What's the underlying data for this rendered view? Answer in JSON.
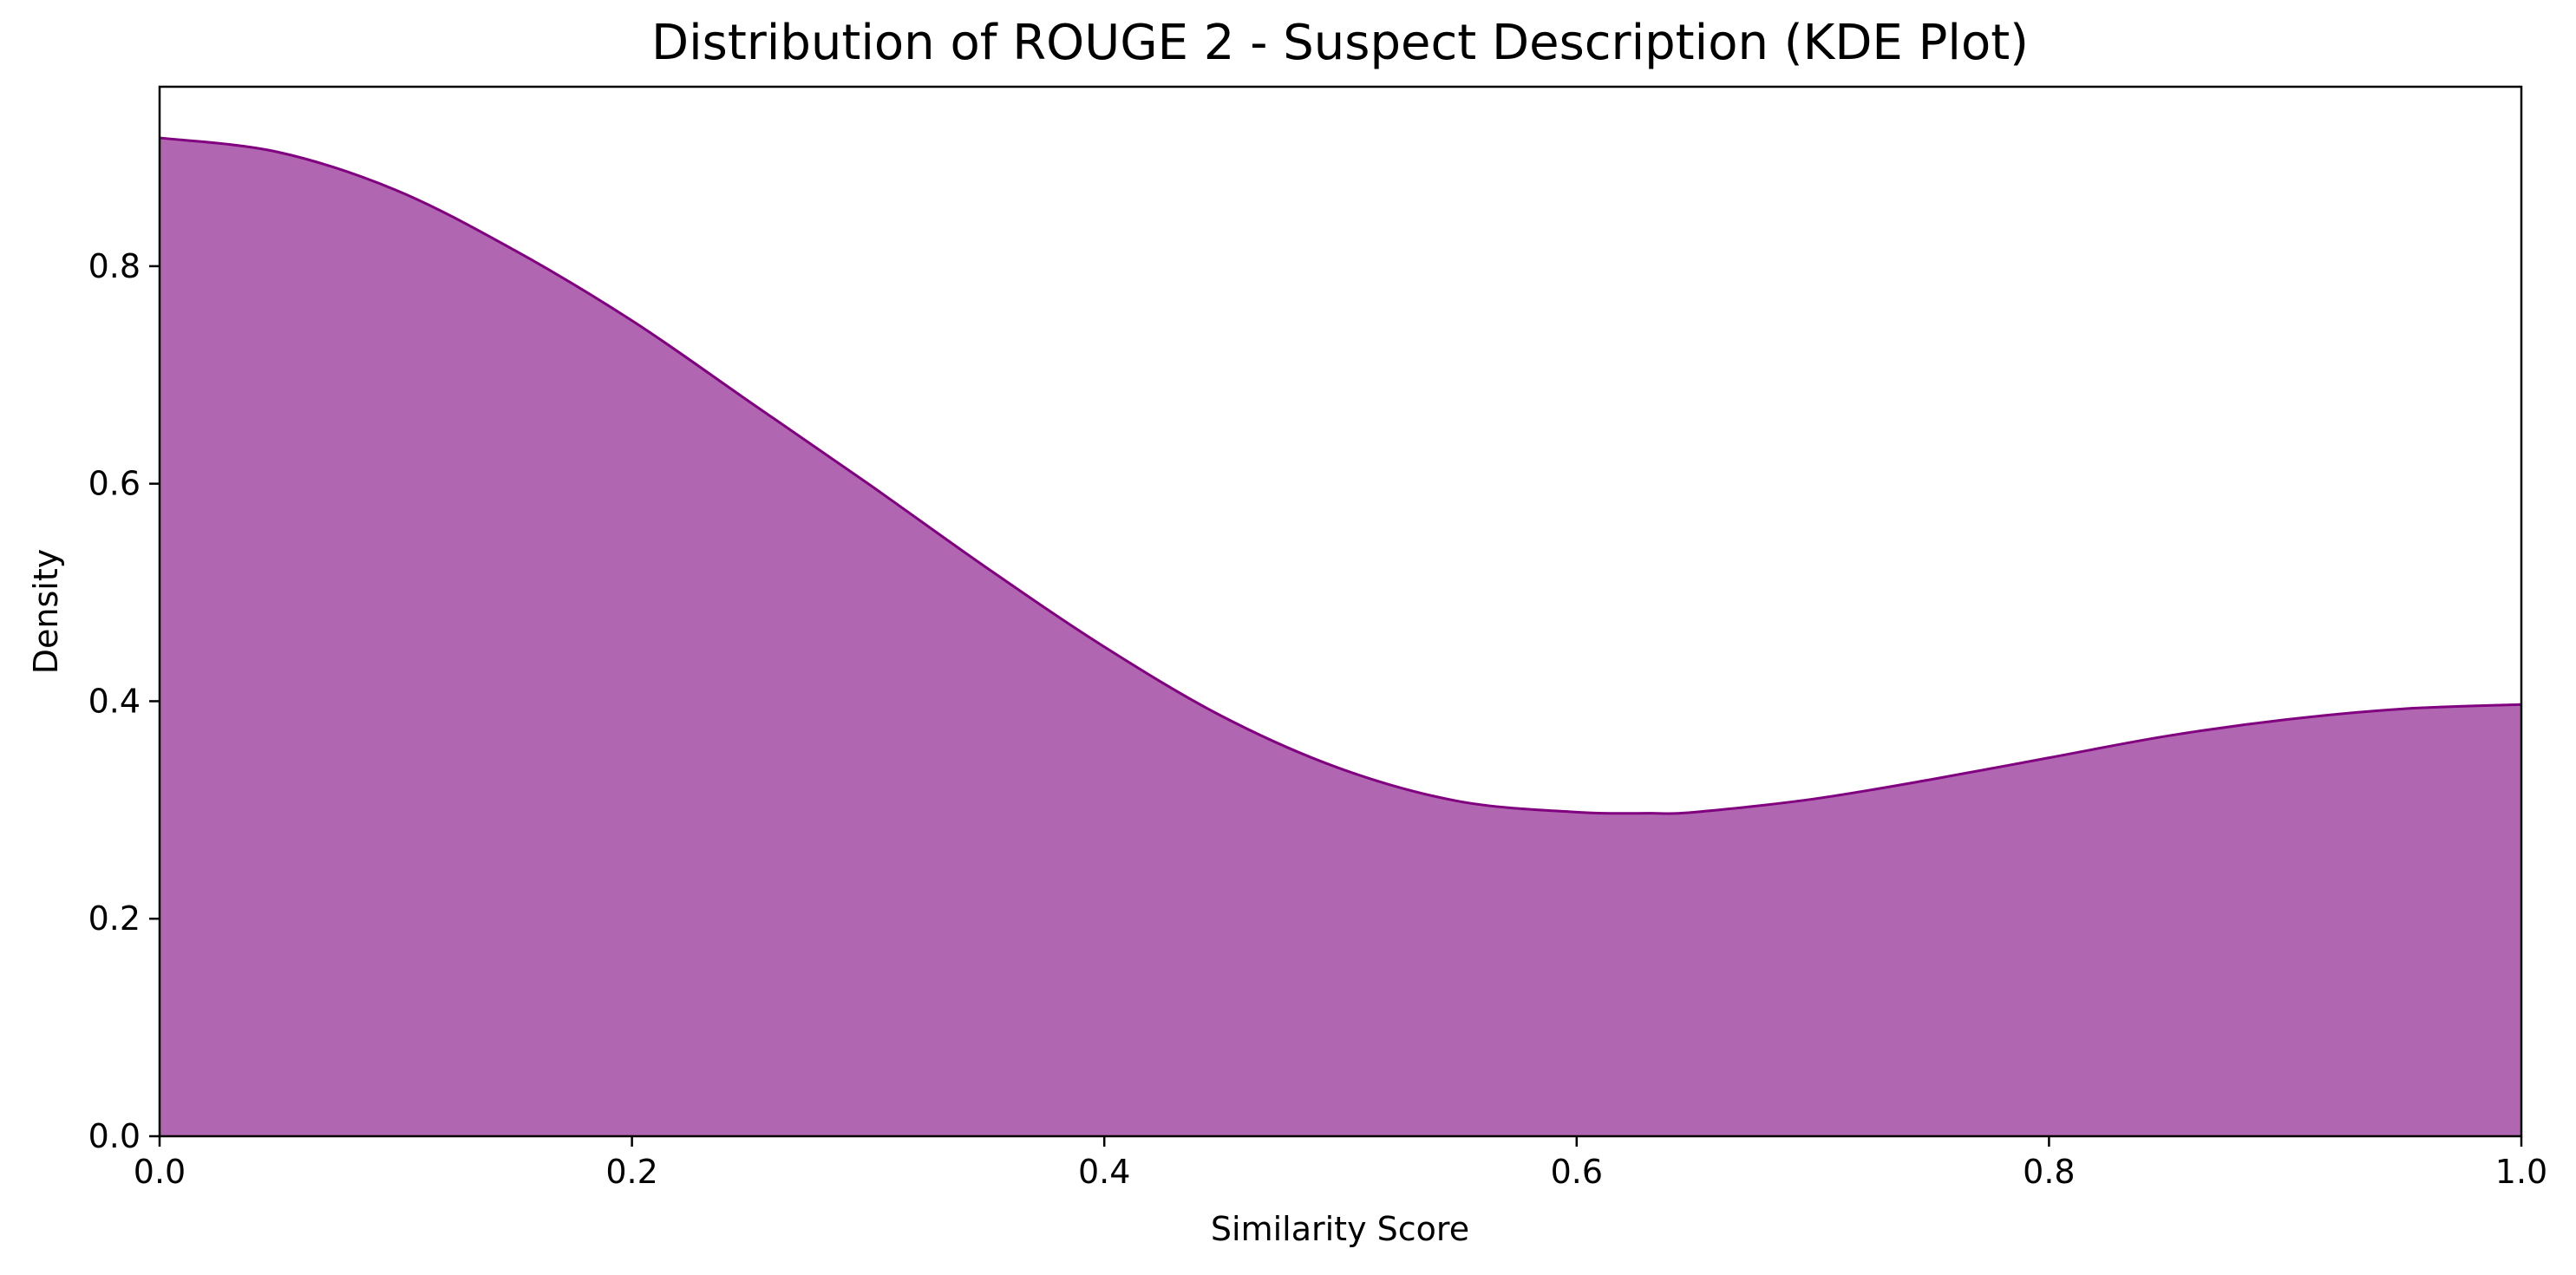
{
  "chart_data": {
    "type": "area",
    "title": "Distribution of ROUGE 2 - Suspect Description (KDE Plot)",
    "xlabel": "Similarity Score",
    "ylabel": "Density",
    "xlim": [
      0.0,
      1.0
    ],
    "ylim": [
      0.0,
      0.965
    ],
    "xticks": [
      "0.0",
      "0.2",
      "0.4",
      "0.6",
      "0.8",
      "1.0"
    ],
    "yticks": [
      "0.0",
      "0.2",
      "0.4",
      "0.6",
      "0.8"
    ],
    "grid": false,
    "fill_color": "#b066b0",
    "line_color": "#800080",
    "series": [
      {
        "x": [
          0.0,
          0.05,
          0.1,
          0.15,
          0.2,
          0.25,
          0.3,
          0.35,
          0.4,
          0.45,
          0.5,
          0.55,
          0.6,
          0.63,
          0.65,
          0.7,
          0.75,
          0.8,
          0.85,
          0.9,
          0.95,
          1.0
        ],
        "values": [
          0.918,
          0.905,
          0.87,
          0.815,
          0.75,
          0.675,
          0.6,
          0.523,
          0.45,
          0.386,
          0.338,
          0.308,
          0.298,
          0.297,
          0.298,
          0.31,
          0.328,
          0.348,
          0.368,
          0.383,
          0.393,
          0.397
        ]
      }
    ]
  }
}
